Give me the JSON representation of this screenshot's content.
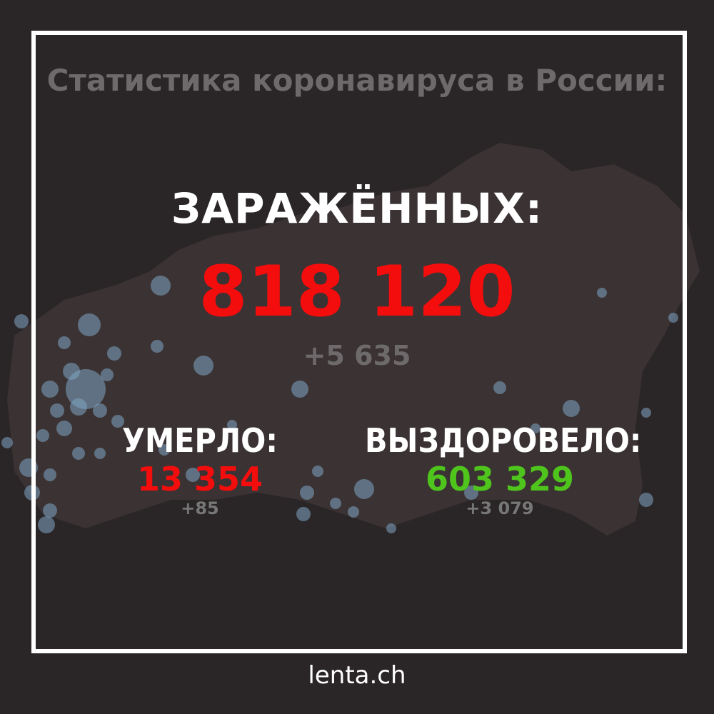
{
  "title": "Статистика коронавируса в России:",
  "infected": {
    "label": "ЗАРАЖЁННЫХ:",
    "value": "818 120",
    "delta": "+5 635"
  },
  "deaths": {
    "label": "УМЕРЛО:",
    "value": "13 354",
    "delta": "+85"
  },
  "recovered": {
    "label": "ВЫЗДОРОВЕЛО:",
    "value": "603 329",
    "delta": "+3 079"
  },
  "footer": "lenta.ch",
  "colors": {
    "background": "#2a2526",
    "infected": "#f40d0d",
    "deaths": "#f40d0d",
    "recovered": "#4fc41c",
    "dots": "#7fa6c4"
  }
}
